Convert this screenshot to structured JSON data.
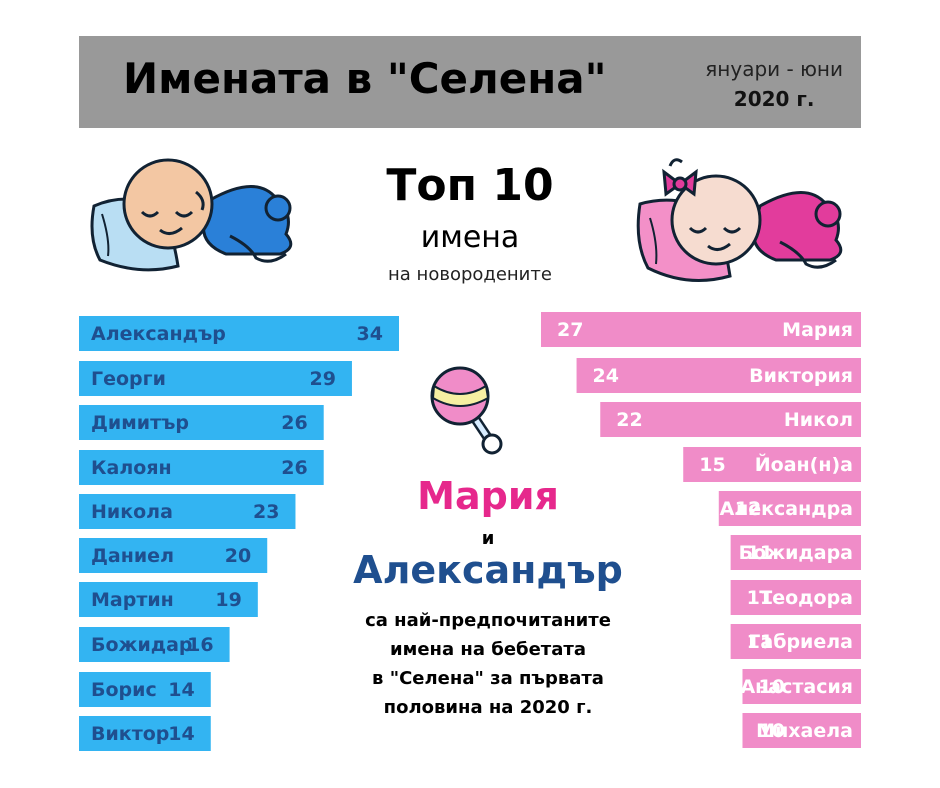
{
  "header": {
    "title": "Имената в \"Селена\"",
    "period_line1": "януари - юни",
    "period_line2": "2020 г."
  },
  "subtitle": {
    "top": "Топ 10",
    "line2": "имена",
    "line3": "на новородените"
  },
  "center": {
    "name_girl": "Мария",
    "conjunction": "и",
    "name_boy": "Александър",
    "line1": "са най-предпочитаните",
    "line2": "имена на бебетата",
    "line3": "в \"Селена\" за първата",
    "line4": "половина на 2020 г."
  },
  "colors": {
    "boy_bar": "#33b4f2",
    "girl_bar": "#f08cc8",
    "boy_text": "#1f4f8f",
    "girl_text": "#ffffff",
    "header_bg": "#999999"
  },
  "icons": [
    "sleeping-baby-boy-icon",
    "sleeping-baby-girl-icon",
    "rattle-icon"
  ],
  "chart_data": [
    {
      "type": "bar",
      "orientation": "horizontal",
      "categories": [
        "Александър",
        "Георги",
        "Димитър",
        "Калоян",
        "Никола",
        "Даниел",
        "Мартин",
        "Божидар",
        "Борис",
        "Виктор"
      ],
      "values": [
        34,
        29,
        26,
        26,
        23,
        20,
        19,
        16,
        14,
        14
      ]
    },
    {
      "type": "bar",
      "orientation": "horizontal",
      "categories": [
        "Мария",
        "Виктория",
        "Никол",
        "Йоан(н)а",
        "Александра",
        "Божидара",
        "Теодора",
        "Габриела",
        "Анастасия",
        "Михаела"
      ],
      "values": [
        27,
        24,
        22,
        15,
        12,
        11,
        11,
        11,
        10,
        10
      ]
    }
  ]
}
